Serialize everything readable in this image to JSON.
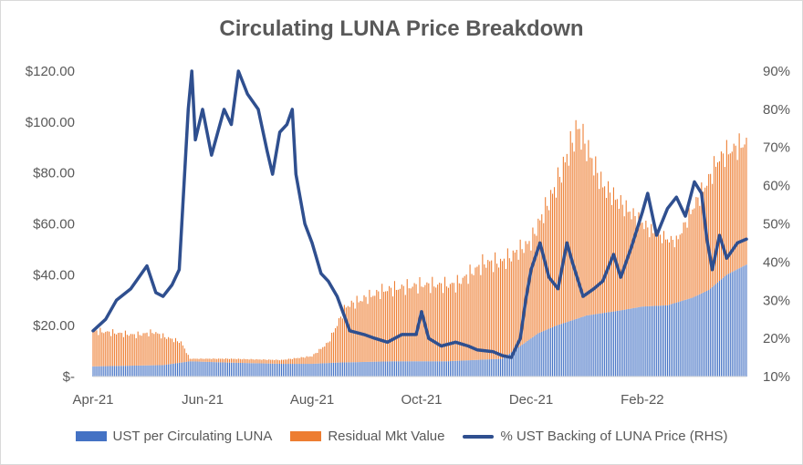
{
  "chart_data": {
    "type": "bar",
    "title": "Circulating LUNA Price Breakdown",
    "x_tick_labels": [
      "Apr-21",
      "Jun-21",
      "Aug-21",
      "Oct-21",
      "Dec-21",
      "Feb-22"
    ],
    "y_left_tick_labels": [
      "$-",
      "$20.00",
      "$40.00",
      "$60.00",
      "$80.00",
      "$100.00",
      "$120.00"
    ],
    "y_right_tick_labels": [
      "10%",
      "20%",
      "30%",
      "40%",
      "50%",
      "60%",
      "70%",
      "80%",
      "90%"
    ],
    "ylim_left": [
      0,
      120
    ],
    "ylim_right": [
      0.1,
      0.9
    ],
    "stacked": true,
    "colors": {
      "ust": "#4472c4",
      "residual": "#ed7d31",
      "backing": "#2f4f8f"
    },
    "series": [
      {
        "name": "UST per Circulating LUNA",
        "axis": "left",
        "style": "stacked-bar",
        "points": [
          [
            "2021-04-01",
            4
          ],
          [
            "2021-05-10",
            4.5
          ],
          [
            "2021-05-20",
            5.5
          ],
          [
            "2021-05-25",
            6
          ],
          [
            "2021-06-15",
            5.5
          ],
          [
            "2021-07-15",
            5
          ],
          [
            "2021-08-01",
            5
          ],
          [
            "2021-08-15",
            5.5
          ],
          [
            "2021-09-15",
            6
          ],
          [
            "2021-10-15",
            6
          ],
          [
            "2021-11-15",
            7
          ],
          [
            "2021-11-25",
            12
          ],
          [
            "2021-12-05",
            17
          ],
          [
            "2021-12-15",
            20
          ],
          [
            "2022-01-01",
            24
          ],
          [
            "2022-01-20",
            26
          ],
          [
            "2022-02-01",
            27.5
          ],
          [
            "2022-02-15",
            28
          ],
          [
            "2022-03-01",
            31
          ],
          [
            "2022-03-10",
            34
          ],
          [
            "2022-03-20",
            40
          ],
          [
            "2022-03-31",
            44
          ]
        ]
      },
      {
        "name": "Residual Mkt Value",
        "axis": "left",
        "style": "stacked-bar",
        "points": [
          [
            "2021-04-01",
            14
          ],
          [
            "2021-04-25",
            12
          ],
          [
            "2021-05-05",
            13
          ],
          [
            "2021-05-20",
            8
          ],
          [
            "2021-05-25",
            1
          ],
          [
            "2021-06-15",
            1.5
          ],
          [
            "2021-07-15",
            1.5
          ],
          [
            "2021-08-01",
            3
          ],
          [
            "2021-08-10",
            8
          ],
          [
            "2021-08-20",
            22
          ],
          [
            "2021-09-10",
            28
          ],
          [
            "2021-10-01",
            30
          ],
          [
            "2021-10-20",
            30
          ],
          [
            "2021-11-05",
            38
          ],
          [
            "2021-11-20",
            38
          ],
          [
            "2021-12-01",
            38
          ],
          [
            "2021-12-15",
            55
          ],
          [
            "2021-12-27",
            75
          ],
          [
            "2022-01-10",
            50
          ],
          [
            "2022-01-25",
            38
          ],
          [
            "2022-02-05",
            30
          ],
          [
            "2022-02-20",
            24
          ],
          [
            "2022-03-01",
            35
          ],
          [
            "2022-03-15",
            48
          ],
          [
            "2022-03-31",
            48
          ]
        ]
      },
      {
        "name": "% UST Backing of LUNA Price (RHS)",
        "axis": "right",
        "style": "line",
        "points": [
          [
            "2021-04-01",
            0.22
          ],
          [
            "2021-04-08",
            0.25
          ],
          [
            "2021-04-14",
            0.3
          ],
          [
            "2021-04-22",
            0.33
          ],
          [
            "2021-05-01",
            0.39
          ],
          [
            "2021-05-06",
            0.32
          ],
          [
            "2021-05-10",
            0.31
          ],
          [
            "2021-05-15",
            0.34
          ],
          [
            "2021-05-19",
            0.38
          ],
          [
            "2021-05-21",
            0.55
          ],
          [
            "2021-05-24",
            0.8
          ],
          [
            "2021-05-26",
            0.9
          ],
          [
            "2021-05-28",
            0.72
          ],
          [
            "2021-06-01",
            0.8
          ],
          [
            "2021-06-06",
            0.68
          ],
          [
            "2021-06-13",
            0.8
          ],
          [
            "2021-06-17",
            0.76
          ],
          [
            "2021-06-21",
            0.9
          ],
          [
            "2021-06-26",
            0.84
          ],
          [
            "2021-07-02",
            0.8
          ],
          [
            "2021-07-07",
            0.69
          ],
          [
            "2021-07-10",
            0.63
          ],
          [
            "2021-07-14",
            0.74
          ],
          [
            "2021-07-18",
            0.76
          ],
          [
            "2021-07-21",
            0.8
          ],
          [
            "2021-07-23",
            0.63
          ],
          [
            "2021-07-28",
            0.5
          ],
          [
            "2021-08-01",
            0.45
          ],
          [
            "2021-08-06",
            0.37
          ],
          [
            "2021-08-10",
            0.35
          ],
          [
            "2021-08-15",
            0.31
          ],
          [
            "2021-08-22",
            0.22
          ],
          [
            "2021-08-30",
            0.21
          ],
          [
            "2021-09-05",
            0.2
          ],
          [
            "2021-09-12",
            0.19
          ],
          [
            "2021-09-20",
            0.21
          ],
          [
            "2021-09-28",
            0.21
          ],
          [
            "2021-10-01",
            0.27
          ],
          [
            "2021-10-05",
            0.2
          ],
          [
            "2021-10-12",
            0.18
          ],
          [
            "2021-10-20",
            0.19
          ],
          [
            "2021-10-27",
            0.18
          ],
          [
            "2021-11-01",
            0.17
          ],
          [
            "2021-11-10",
            0.165
          ],
          [
            "2021-11-15",
            0.155
          ],
          [
            "2021-11-20",
            0.15
          ],
          [
            "2021-11-25",
            0.2
          ],
          [
            "2021-11-28",
            0.3
          ],
          [
            "2021-12-01",
            0.38
          ],
          [
            "2021-12-06",
            0.45
          ],
          [
            "2021-12-11",
            0.36
          ],
          [
            "2021-12-16",
            0.33
          ],
          [
            "2021-12-21",
            0.45
          ],
          [
            "2021-12-24",
            0.4
          ],
          [
            "2021-12-30",
            0.31
          ],
          [
            "2022-01-05",
            0.33
          ],
          [
            "2022-01-10",
            0.35
          ],
          [
            "2022-01-16",
            0.42
          ],
          [
            "2022-01-20",
            0.36
          ],
          [
            "2022-01-26",
            0.44
          ],
          [
            "2022-02-01",
            0.53
          ],
          [
            "2022-02-04",
            0.58
          ],
          [
            "2022-02-09",
            0.47
          ],
          [
            "2022-02-15",
            0.54
          ],
          [
            "2022-02-20",
            0.57
          ],
          [
            "2022-02-25",
            0.52
          ],
          [
            "2022-03-02",
            0.61
          ],
          [
            "2022-03-06",
            0.58
          ],
          [
            "2022-03-09",
            0.46
          ],
          [
            "2022-03-12",
            0.38
          ],
          [
            "2022-03-16",
            0.47
          ],
          [
            "2022-03-20",
            0.41
          ],
          [
            "2022-03-26",
            0.45
          ],
          [
            "2022-03-31",
            0.46
          ]
        ]
      }
    ],
    "legend_position": "bottom",
    "grid": false
  }
}
